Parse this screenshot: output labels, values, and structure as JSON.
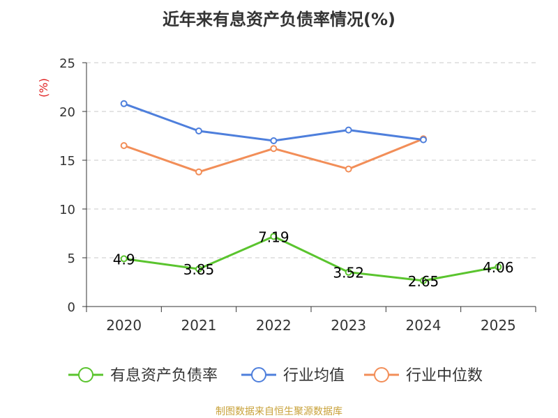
{
  "title": "近年来有息资产负债率情况(%)",
  "source": "制图数据来自恒生聚源数据库",
  "chart_data": {
    "type": "line",
    "title": "近年来有息资产负债率情况(%)",
    "xlabel": "",
    "ylabel": "(%)",
    "categories": [
      "2020",
      "2021",
      "2022",
      "2023",
      "2024",
      "2025"
    ],
    "ylim": [
      0,
      25
    ],
    "yticks": [
      0,
      5,
      10,
      15,
      20,
      25
    ],
    "grid": true,
    "legend_position": "bottom",
    "series": [
      {
        "name": "有息资产负债率",
        "color": "#5ac42e",
        "values": [
          4.9,
          3.85,
          7.19,
          3.52,
          2.65,
          4.06
        ],
        "labels": [
          "4.9",
          "3.85",
          "7.19",
          "3.52",
          "2.65",
          "4.06"
        ]
      },
      {
        "name": "行业均值",
        "color": "#4e7fdc",
        "values": [
          20.8,
          18.0,
          17.0,
          18.1,
          17.1,
          null
        ]
      },
      {
        "name": "行业中位数",
        "color": "#f28e58",
        "values": [
          16.5,
          13.8,
          16.2,
          14.1,
          17.2,
          null
        ]
      }
    ]
  }
}
